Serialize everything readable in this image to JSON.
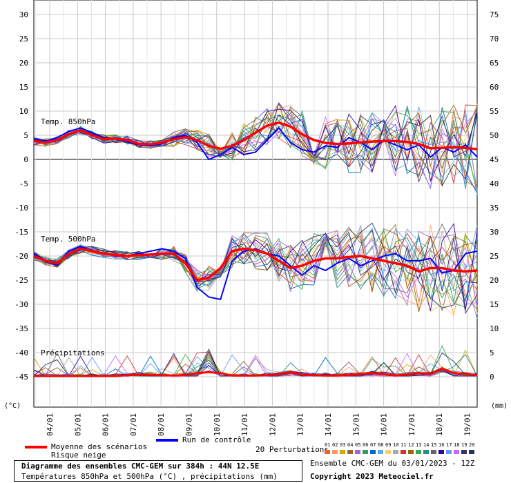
{
  "chart_data": {
    "type": "line",
    "title": "Diagramme des ensembles CMC-GEM sur 384h : 44N 12.5E",
    "subtitle": "Températures 850hPa et 500hPa (°C) , précipitations (mm)",
    "left_axis_unit": "(°C)",
    "right_axis_unit": "(mm)",
    "left_ticks": [
      30,
      25,
      20,
      15,
      10,
      5,
      0,
      -5,
      -10,
      -15,
      -20,
      -25,
      -30,
      -35,
      -40,
      -45
    ],
    "right_ticks": [
      75,
      70,
      65,
      60,
      55,
      50,
      45,
      40,
      35,
      30,
      25,
      20,
      15,
      10,
      5,
      0
    ],
    "x_labels": [
      "04/01",
      "05/01",
      "06/01",
      "07/01",
      "08/01",
      "09/01",
      "10/01",
      "11/01",
      "12/01",
      "13/01",
      "14/01",
      "15/01",
      "16/01",
      "17/01",
      "18/01",
      "19/01"
    ],
    "panel_labels": {
      "t850": "Temp. 850hPa",
      "t500": "Temp. 500hPa",
      "precip": "Précipitations"
    },
    "grid": true,
    "mean_850": [
      3.8,
      3.5,
      4.0,
      5.2,
      6.0,
      5.0,
      4.2,
      4.3,
      4.0,
      3.2,
      3.1,
      3.5,
      4.2,
      4.6,
      4.0,
      2.8,
      2.2,
      2.8,
      4.0,
      5.5,
      7.0,
      7.6,
      6.8,
      5.2,
      4.0,
      3.4,
      3.2,
      3.3,
      3.5,
      3.7,
      3.8,
      3.8,
      3.6,
      3.2,
      2.3,
      2.4,
      2.5,
      2.4,
      2.1
    ],
    "control_850": [
      4.2,
      3.8,
      4.5,
      5.8,
      6.5,
      5.5,
      4.5,
      4.2,
      3.6,
      3.0,
      2.8,
      3.2,
      4.5,
      5.0,
      3.5,
      0.0,
      1.0,
      2.5,
      1.0,
      1.5,
      4.0,
      6.5,
      3.5,
      2.0,
      1.5,
      2.8,
      2.5,
      4.5,
      3.5,
      2.0,
      4.0,
      3.0,
      2.0,
      3.0,
      0.5,
      2.5,
      1.5,
      3.0,
      0.5
    ],
    "mean_500": [
      -20.0,
      -21.0,
      -21.5,
      -19.5,
      -18.5,
      -19.0,
      -19.5,
      -19.8,
      -20.0,
      -19.8,
      -19.7,
      -19.5,
      -19.6,
      -21.5,
      -25.0,
      -24.5,
      -22.5,
      -19.0,
      -18.5,
      -18.8,
      -19.5,
      -21.0,
      -22.5,
      -22.0,
      -21.0,
      -20.5,
      -20.5,
      -20.2,
      -20.0,
      -20.5,
      -21.0,
      -21.5,
      -22.0,
      -23.2,
      -22.5,
      -22.5,
      -23.0,
      -23.2,
      -23.0
    ],
    "control_500": [
      -19.5,
      -21.0,
      -21.8,
      -19.0,
      -18.0,
      -19.0,
      -19.5,
      -20.0,
      -20.0,
      -19.5,
      -19.0,
      -18.5,
      -19.0,
      -20.5,
      -26.5,
      -28.5,
      -29.0,
      -21.0,
      -19.0,
      -18.5,
      -19.5,
      -20.0,
      -22.0,
      -24.0,
      -22.0,
      -23.0,
      -21.5,
      -20.5,
      -22.0,
      -21.0,
      -20.0,
      -19.5,
      -21.0,
      -21.0,
      -20.5,
      -23.5,
      -23.0,
      -19.5,
      -19.0
    ],
    "mean_precip": [
      0,
      0,
      0,
      0,
      0,
      0,
      0,
      0,
      0.2,
      0.3,
      0.2,
      0.2,
      0.1,
      0.2,
      0.6,
      0.8,
      0.6,
      0.1,
      0.1,
      0.1,
      0.2,
      0.4,
      0.8,
      0.3,
      0.2,
      0.1,
      0.1,
      0.2,
      0.4,
      0.6,
      0.4,
      0.1,
      0.3,
      0.6,
      0.4,
      1.5,
      0.6,
      0.4,
      0.2
    ],
    "n_perturbations": 20
  },
  "legend": {
    "mean_label": "Moyenne des scénarios",
    "risk_label": "Risque neige",
    "control_label": "Run de contrôle",
    "pert_label": "20 Perturbations",
    "pert_numbers": [
      "01",
      "02",
      "03",
      "04",
      "05",
      "06",
      "07",
      "08",
      "09",
      "10",
      "11",
      "12",
      "13",
      "14",
      "15",
      "16",
      "17",
      "18",
      "19",
      "20"
    ],
    "ensemble_info": "Ensemble CMC-GEM du 03/01/2023 - 12Z",
    "copyright": "Copyright 2023 Meteociel.fr"
  },
  "colors": {
    "mean": "#ff0000",
    "control": "#0000ff",
    "grid": "#c8c8c8",
    "perturbations": [
      "#f06030",
      "#ff9966",
      "#ccaa00",
      "#996633",
      "#aa66cc",
      "#339966",
      "#0066cc",
      "#66aadd",
      "#ffcc66",
      "#aaaaaa",
      "#cc3333",
      "#996600",
      "#33aa55",
      "#338888",
      "#666666",
      "#330099",
      "#6699ff",
      "#cc66ff",
      "#333366",
      "#223366"
    ]
  }
}
